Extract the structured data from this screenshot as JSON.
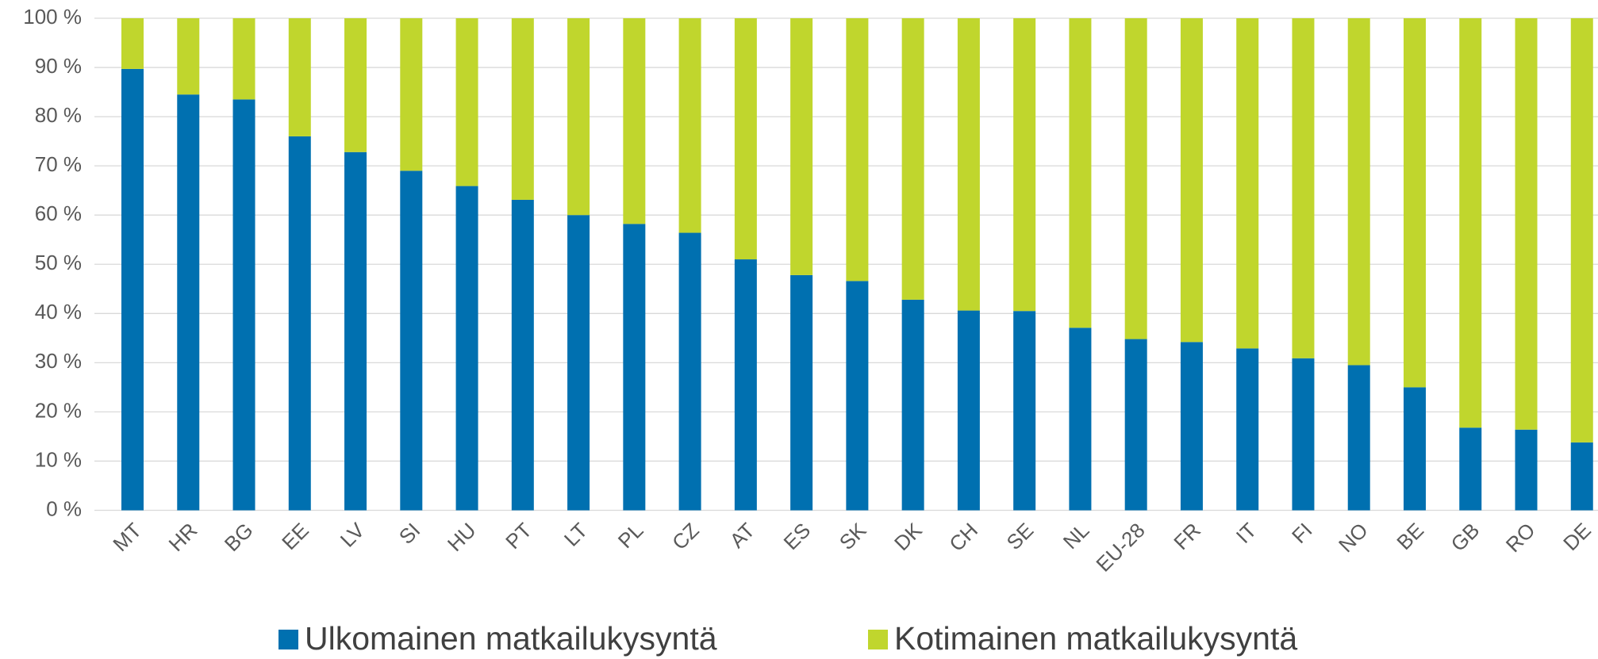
{
  "chart_data": {
    "type": "stacked_bar",
    "categories": [
      "MT",
      "HR",
      "BG",
      "EE",
      "LV",
      "SI",
      "HU",
      "PT",
      "LT",
      "PL",
      "CZ",
      "AT",
      "ES",
      "SK",
      "DK",
      "CH",
      "SE",
      "NL",
      "EU-28",
      "FR",
      "IT",
      "FI",
      "NO",
      "BE",
      "GB",
      "RO",
      "DE"
    ],
    "series": [
      {
        "name": "Ulkomainen matkailukysyntä",
        "color": "#0070b0",
        "values": [
          89.7,
          84.5,
          83.5,
          76,
          72.8,
          69,
          65.9,
          63.1,
          60,
          58.2,
          56.4,
          51,
          47.8,
          46.6,
          42.8,
          40.6,
          40.5,
          37.1,
          34.8,
          34.2,
          32.9,
          30.9,
          29.5,
          25,
          16.8,
          16.4,
          13.8
        ]
      },
      {
        "name": "Kotimainen matkailukysyntä",
        "color": "#c0d62d",
        "values": [
          10.3,
          15.5,
          16.5,
          24,
          27.2,
          31,
          34.1,
          36.9,
          40,
          41.8,
          43.6,
          49,
          52.2,
          53.4,
          57.2,
          59.4,
          59.5,
          62.9,
          65.2,
          65.8,
          67.1,
          69.1,
          70.5,
          75,
          83.2,
          83.6,
          86.2
        ]
      }
    ],
    "ylim": [
      0,
      100
    ],
    "yticks": [
      {
        "value": 0,
        "label": "0 %"
      },
      {
        "value": 10,
        "label": "10 %"
      },
      {
        "value": 20,
        "label": "20 %"
      },
      {
        "value": 30,
        "label": "30 %"
      },
      {
        "value": 40,
        "label": "40 %"
      },
      {
        "value": 50,
        "label": "50 %"
      },
      {
        "value": 60,
        "label": "60 %"
      },
      {
        "value": 70,
        "label": "70 %"
      },
      {
        "value": 80,
        "label": "80 %"
      },
      {
        "value": 90,
        "label": "90 %"
      },
      {
        "value": 100,
        "label": "100 %"
      }
    ],
    "grid": true,
    "legend": "bottom"
  }
}
